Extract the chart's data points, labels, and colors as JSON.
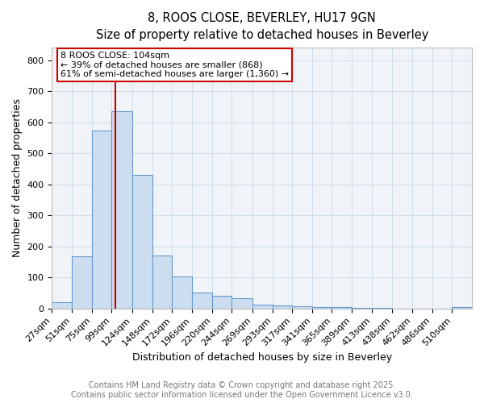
{
  "title_line1": "8, ROOS CLOSE, BEVERLEY, HU17 9GN",
  "title_line2": "Size of property relative to detached houses in Beverley",
  "xlabel": "Distribution of detached houses by size in Beverley",
  "ylabel": "Number of detached properties",
  "bar_left_edges": [
    27,
    51,
    75,
    99,
    124,
    148,
    172,
    196,
    220,
    244,
    269,
    293,
    317,
    341,
    365,
    389,
    413,
    438,
    462,
    486,
    510
  ],
  "bar_heights": [
    20,
    168,
    572,
    636,
    430,
    170,
    103,
    52,
    40,
    32,
    12,
    10,
    8,
    5,
    4,
    2,
    1,
    0,
    0,
    0,
    5
  ],
  "bar_color": "#ccddf0",
  "bar_edge_color": "#6699cc",
  "grid_color": "#d0dde8",
  "bg_color": "#f0f4f8",
  "plot_bg_color": "#f0f4f8",
  "property_size": 104,
  "vline_color": "#cc0000",
  "annotation_text": "8 ROOS CLOSE: 104sqm\n← 39% of detached houses are smaller (868)\n61% of semi-detached houses are larger (1,360) →",
  "annotation_box_color": "#cc0000",
  "ylim": [
    0,
    840
  ],
  "yticks": [
    0,
    100,
    200,
    300,
    400,
    500,
    600,
    700,
    800
  ],
  "footer_line1": "Contains HM Land Registry data © Crown copyright and database right 2025.",
  "footer_line2": "Contains public sector information licensed under the Open Government Licence v3.0.",
  "title_fontsize": 10.5,
  "subtitle_fontsize": 9.5,
  "axis_label_fontsize": 9,
  "tick_fontsize": 8,
  "annotation_fontsize": 8,
  "footer_fontsize": 7
}
